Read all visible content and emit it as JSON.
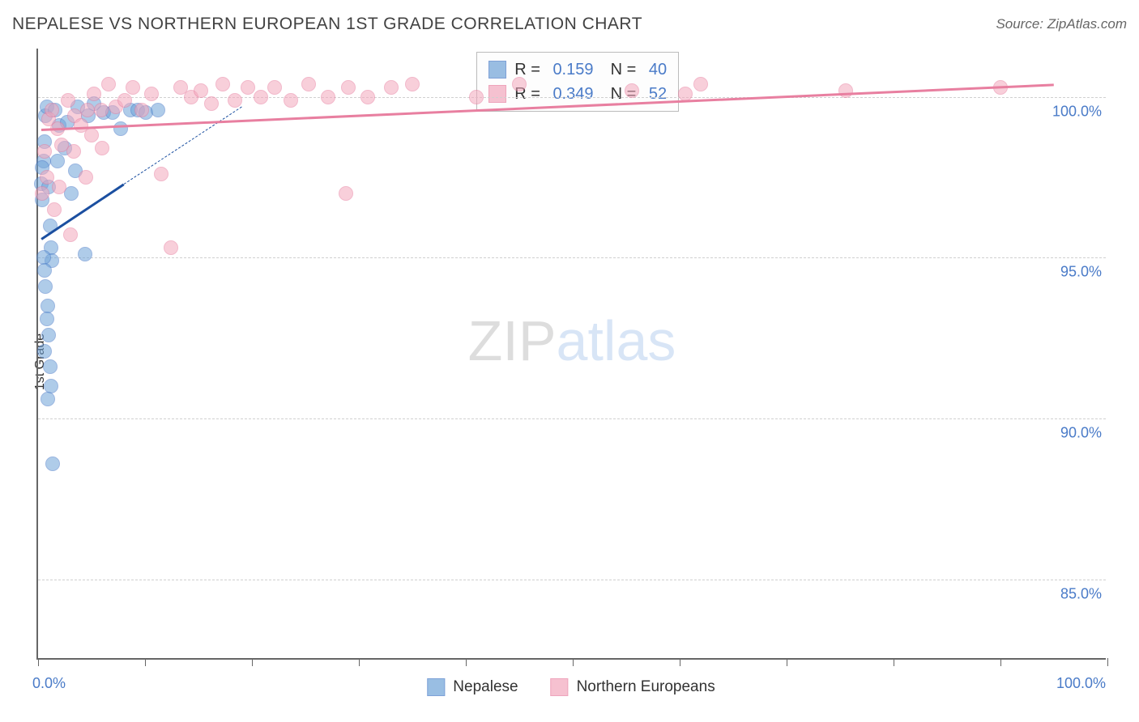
{
  "title": "NEPALESE VS NORTHERN EUROPEAN 1ST GRADE CORRELATION CHART",
  "source": "Source: ZipAtlas.com",
  "yaxis_title": "1st Grade",
  "watermark": {
    "a": "ZIP",
    "b": "atlas"
  },
  "chart": {
    "type": "scatter",
    "background_color": "#ffffff",
    "grid_color": "#d0d0d0",
    "axis_color": "#666666",
    "text_color": "#333333",
    "value_color": "#4a7bc8",
    "xlim": [
      0,
      100
    ],
    "ylim": [
      82.5,
      101.5
    ],
    "xtick_positions": [
      0,
      10,
      20,
      30,
      40,
      50,
      60,
      70,
      80,
      90,
      100
    ],
    "xtick_labels_shown": {
      "0": "0.0%",
      "100": "100.0%"
    },
    "ytick_positions": [
      85.0,
      90.0,
      95.0,
      100.0
    ],
    "ytick_labels": [
      "85.0%",
      "90.0%",
      "95.0%",
      "100.0%"
    ],
    "marker_size": 18,
    "marker_opacity": 0.55,
    "series": [
      {
        "name": "Nepalese",
        "color": "#6fa3d8",
        "border": "#4a7bc8",
        "R": "0.159",
        "N": "40",
        "trend": {
          "x1": 0.3,
          "y1": 95.6,
          "x2": 8.0,
          "y2": 97.3,
          "color": "#1b4fa0",
          "width": 2.5,
          "dash_ext_x": 19,
          "dash_ext_y": 99.7
        },
        "points": [
          [
            0.3,
            97.3
          ],
          [
            0.4,
            96.8
          ],
          [
            0.5,
            98.0
          ],
          [
            0.6,
            98.6
          ],
          [
            0.7,
            99.4
          ],
          [
            0.8,
            99.7
          ],
          [
            1.0,
            97.2
          ],
          [
            1.1,
            96.0
          ],
          [
            1.2,
            95.3
          ],
          [
            1.3,
            94.9
          ],
          [
            0.5,
            95.0
          ],
          [
            0.6,
            94.6
          ],
          [
            0.7,
            94.1
          ],
          [
            0.9,
            93.5
          ],
          [
            0.8,
            93.1
          ],
          [
            1.0,
            92.6
          ],
          [
            0.6,
            92.1
          ],
          [
            1.1,
            91.6
          ],
          [
            1.2,
            91.0
          ],
          [
            0.9,
            90.6
          ],
          [
            1.4,
            88.6
          ],
          [
            1.6,
            99.6
          ],
          [
            2.0,
            99.1
          ],
          [
            2.5,
            98.4
          ],
          [
            3.1,
            97.0
          ],
          [
            3.5,
            97.7
          ],
          [
            4.4,
            95.1
          ],
          [
            4.7,
            99.4
          ],
          [
            5.2,
            99.8
          ],
          [
            6.1,
            99.5
          ],
          [
            7.0,
            99.5
          ],
          [
            7.7,
            99.0
          ],
          [
            8.6,
            99.6
          ],
          [
            9.3,
            99.6
          ],
          [
            10.1,
            99.5
          ],
          [
            11.2,
            99.6
          ],
          [
            3.7,
            99.7
          ],
          [
            2.7,
            99.2
          ],
          [
            1.8,
            98.0
          ],
          [
            0.4,
            97.8
          ]
        ]
      },
      {
        "name": "Northern Europeans",
        "color": "#f3a8bd",
        "border": "#e87fa0",
        "R": "0.349",
        "N": "52",
        "trend": {
          "x1": 0.3,
          "y1": 99.0,
          "x2": 95,
          "y2": 100.4,
          "color": "#e87fa0",
          "width": 2.5
        },
        "points": [
          [
            0.4,
            97.0
          ],
          [
            0.6,
            98.3
          ],
          [
            1.0,
            99.3
          ],
          [
            1.3,
            99.6
          ],
          [
            1.8,
            99.0
          ],
          [
            2.2,
            98.5
          ],
          [
            2.8,
            99.9
          ],
          [
            3.4,
            99.4
          ],
          [
            4.0,
            99.1
          ],
          [
            4.6,
            99.6
          ],
          [
            5.2,
            100.1
          ],
          [
            5.9,
            99.6
          ],
          [
            6.6,
            100.4
          ],
          [
            7.3,
            99.7
          ],
          [
            8.1,
            99.9
          ],
          [
            8.9,
            100.3
          ],
          [
            9.7,
            99.6
          ],
          [
            10.6,
            100.1
          ],
          [
            11.5,
            97.6
          ],
          [
            12.4,
            95.3
          ],
          [
            13.3,
            100.3
          ],
          [
            14.3,
            100.0
          ],
          [
            15.2,
            100.2
          ],
          [
            16.2,
            99.8
          ],
          [
            17.3,
            100.4
          ],
          [
            18.4,
            99.9
          ],
          [
            19.6,
            100.3
          ],
          [
            20.8,
            100.0
          ],
          [
            22.1,
            100.3
          ],
          [
            23.6,
            99.9
          ],
          [
            25.3,
            100.4
          ],
          [
            27.1,
            100.0
          ],
          [
            28.8,
            97.0
          ],
          [
            29.0,
            100.3
          ],
          [
            30.8,
            100.0
          ],
          [
            33.0,
            100.3
          ],
          [
            35.0,
            100.4
          ],
          [
            41.0,
            100.0
          ],
          [
            45.0,
            100.4
          ],
          [
            55.5,
            100.2
          ],
          [
            60.5,
            100.1
          ],
          [
            62.0,
            100.4
          ],
          [
            75.5,
            100.2
          ],
          [
            90.0,
            100.3
          ],
          [
            3.0,
            95.7
          ],
          [
            4.5,
            97.5
          ],
          [
            6.0,
            98.4
          ],
          [
            1.5,
            96.5
          ],
          [
            0.8,
            97.5
          ],
          [
            2.0,
            97.2
          ],
          [
            3.3,
            98.3
          ],
          [
            5.0,
            98.8
          ]
        ]
      }
    ]
  }
}
